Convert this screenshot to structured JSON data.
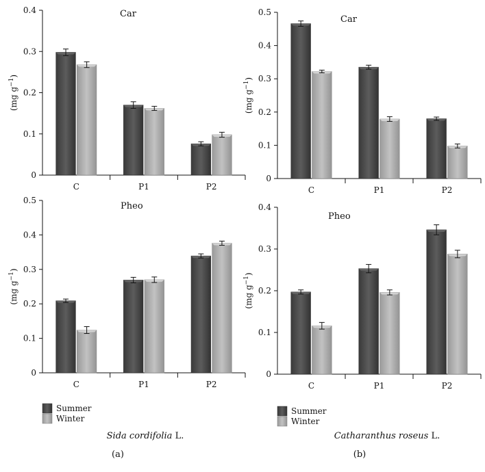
{
  "legend": {
    "items": [
      "Summer",
      "Winter"
    ]
  },
  "captions": {
    "left_species": "Sida cordifolia",
    "left_suffix": " L.",
    "right_species": "Catharanthus roseus",
    "right_suffix": " L.",
    "left_label": "(a)",
    "right_label": "(b)"
  },
  "colors": {
    "summer": "#4a4a4a",
    "winter": "#a8a8a8"
  },
  "chart_data": [
    {
      "id": "a-car",
      "type": "bar",
      "title": "Car",
      "ylabel": "(mg g",
      "categories": [
        "C",
        "P1",
        "P2"
      ],
      "ylim": [
        0,
        0.4
      ],
      "yticks": [
        "0",
        "0.1",
        "0.2",
        "0.3",
        "0.4"
      ],
      "series": [
        {
          "name": "Summer",
          "values": [
            0.298,
            0.17,
            0.076
          ],
          "errors": [
            0.008,
            0.008,
            0.005
          ]
        },
        {
          "name": "Winter",
          "values": [
            0.268,
            0.162,
            0.098
          ],
          "errors": [
            0.007,
            0.005,
            0.006
          ]
        }
      ]
    },
    {
      "id": "b-car",
      "type": "bar",
      "title": "Car",
      "ylabel": "(mg g",
      "categories": [
        "C",
        "P1",
        "P2"
      ],
      "ylim": [
        0,
        0.5
      ],
      "yticks": [
        "0",
        "0.1",
        "0.2",
        "0.3",
        "0.4",
        "0.5"
      ],
      "series": [
        {
          "name": "Summer",
          "values": [
            0.466,
            0.335,
            0.18
          ],
          "errors": [
            0.008,
            0.006,
            0.005
          ]
        },
        {
          "name": "Winter",
          "values": [
            0.322,
            0.179,
            0.098
          ],
          "errors": [
            0.004,
            0.007,
            0.006
          ]
        }
      ]
    },
    {
      "id": "a-pheo",
      "type": "bar",
      "title": "Pheo",
      "ylabel": "(mg g",
      "categories": [
        "C",
        "P1",
        "P2"
      ],
      "ylim": [
        0,
        0.5
      ],
      "yticks": [
        "0",
        "0.1",
        "0.2",
        "0.3",
        "0.4",
        "0.5"
      ],
      "series": [
        {
          "name": "Summer",
          "values": [
            0.209,
            0.269,
            0.339
          ],
          "errors": [
            0.005,
            0.008,
            0.006
          ]
        },
        {
          "name": "Winter",
          "values": [
            0.124,
            0.27,
            0.376
          ],
          "errors": [
            0.01,
            0.008,
            0.006
          ]
        }
      ]
    },
    {
      "id": "b-pheo",
      "type": "bar",
      "title": "Pheo",
      "ylabel": "(mg g",
      "categories": [
        "C",
        "P1",
        "P2"
      ],
      "ylim": [
        0,
        0.4
      ],
      "yticks": [
        "0",
        "0.1",
        "0.2",
        "0.3",
        "0.4"
      ],
      "series": [
        {
          "name": "Summer",
          "values": [
            0.197,
            0.253,
            0.346
          ],
          "errors": [
            0.005,
            0.01,
            0.012
          ]
        },
        {
          "name": "Winter",
          "values": [
            0.116,
            0.196,
            0.288
          ],
          "errors": [
            0.008,
            0.006,
            0.009
          ]
        }
      ]
    }
  ]
}
